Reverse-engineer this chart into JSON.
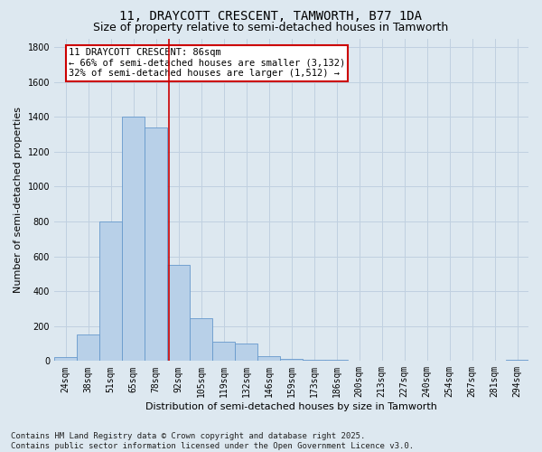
{
  "title_line1": "11, DRAYCOTT CRESCENT, TAMWORTH, B77 1DA",
  "title_line2": "Size of property relative to semi-detached houses in Tamworth",
  "xlabel": "Distribution of semi-detached houses by size in Tamworth",
  "ylabel": "Number of semi-detached properties",
  "annotation_title": "11 DRAYCOTT CRESCENT: 86sqm",
  "annotation_line2": "← 66% of semi-detached houses are smaller (3,132)",
  "annotation_line3": "32% of semi-detached houses are larger (1,512) →",
  "footer_line1": "Contains HM Land Registry data © Crown copyright and database right 2025.",
  "footer_line2": "Contains public sector information licensed under the Open Government Licence v3.0.",
  "categories": [
    "24sqm",
    "38sqm",
    "51sqm",
    "65sqm",
    "78sqm",
    "92sqm",
    "105sqm",
    "119sqm",
    "132sqm",
    "146sqm",
    "159sqm",
    "173sqm",
    "186sqm",
    "200sqm",
    "213sqm",
    "227sqm",
    "240sqm",
    "254sqm",
    "267sqm",
    "281sqm",
    "294sqm"
  ],
  "values": [
    20,
    150,
    800,
    1400,
    1340,
    550,
    245,
    110,
    100,
    30,
    10,
    5,
    5,
    3,
    3,
    3,
    3,
    3,
    3,
    3,
    5
  ],
  "bar_color": "#b8d0e8",
  "bar_edge_color": "#6699cc",
  "grid_color": "#c0d0e0",
  "background_color": "#dde8f0",
  "annotation_box_color": "#ffffff",
  "annotation_box_edge": "#cc0000",
  "vline_color": "#cc0000",
  "vline_x_idx": 5,
  "ylim": [
    0,
    1850
  ],
  "yticks": [
    0,
    200,
    400,
    600,
    800,
    1000,
    1200,
    1400,
    1600,
    1800
  ],
  "title_fontsize": 10,
  "subtitle_fontsize": 9,
  "axis_label_fontsize": 8,
  "tick_fontsize": 7,
  "footer_fontsize": 6.5,
  "annotation_fontsize": 7.5
}
